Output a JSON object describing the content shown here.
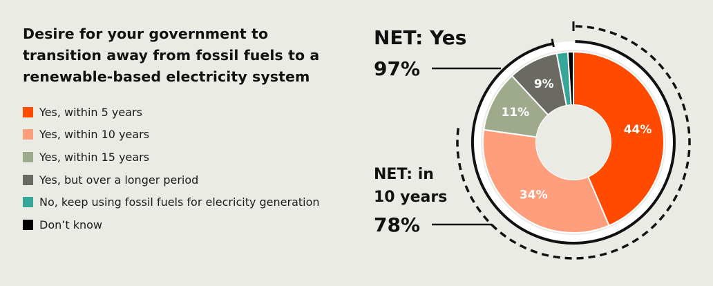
{
  "title": "Desire for your government to transition away from fossil fuels to a renewable-based electricity system",
  "legend": [
    {
      "label": "Yes, within 5 years",
      "color": "#ff4a00"
    },
    {
      "label": "Yes, within 10 years",
      "color": "#ff9e7c"
    },
    {
      "label": "Yes, within 15 years",
      "color": "#9faa8c"
    },
    {
      "label": "Yes, but over a longer period",
      "color": "#6a6a62"
    },
    {
      "label": "No, keep using fossil fuels for elecricity generation",
      "color": "#35a698"
    },
    {
      "label": "Don’t know",
      "color": "#000000"
    }
  ],
  "net_yes": {
    "label": "NET: Yes",
    "value": "97%"
  },
  "net_10": {
    "label_line1": "NET: in",
    "label_line2": "10 years",
    "value": "78%"
  },
  "chart_data": {
    "type": "pie",
    "variant": "donut",
    "title": "Desire for your government to transition away from fossil fuels to a renewable-based electricity system",
    "categories": [
      "Yes, within 5 years",
      "Yes, within 10 years",
      "Yes, within 15 years",
      "Yes, but over a longer period",
      "No, keep using fossil fuels for elecricity generation",
      "Don’t know"
    ],
    "values": [
      44,
      34,
      11,
      9,
      2,
      1
    ],
    "data_labels": [
      "44%",
      "34%",
      "11%",
      "9%",
      "",
      ""
    ],
    "colors": [
      "#ff4a00",
      "#ff9e7c",
      "#9faa8c",
      "#6a6a62",
      "#35a698",
      "#000000"
    ],
    "annotations": [
      {
        "text": "NET: Yes",
        "value": "97%"
      },
      {
        "text": "NET: in 10 years",
        "value": "78%"
      }
    ],
    "legend_position": "left"
  }
}
